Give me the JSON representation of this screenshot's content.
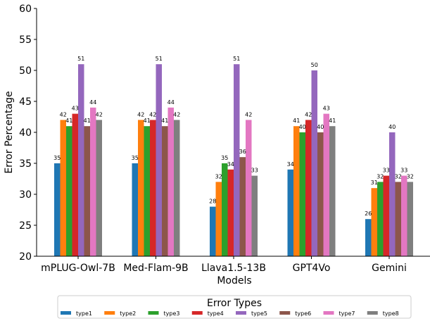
{
  "chart_data": {
    "type": "bar",
    "title": "",
    "xlabel": "Models",
    "ylabel": "Error Percentage",
    "ylim": [
      20,
      60
    ],
    "yticks": [
      "20",
      "25",
      "30",
      "35",
      "40",
      "45",
      "50",
      "55",
      "60"
    ],
    "grid": false,
    "legend_position": "bottom-center",
    "legend_title": "Error Types",
    "categories": [
      "mPLUG-Owl-7B",
      "Med-Flam-9B",
      "Llava1.5-13B",
      "GPT4Vo",
      "Gemini"
    ],
    "series": [
      {
        "name": "type1",
        "color": "#1f77b4",
        "values": [
          35,
          35,
          28,
          34,
          26
        ]
      },
      {
        "name": "type2",
        "color": "#ff7f0e",
        "values": [
          42,
          42,
          32,
          41,
          31
        ]
      },
      {
        "name": "type3",
        "color": "#2ca02c",
        "values": [
          41,
          41,
          35,
          40,
          32
        ]
      },
      {
        "name": "type4",
        "color": "#d62728",
        "values": [
          43,
          42,
          34,
          42,
          33
        ]
      },
      {
        "name": "type5",
        "color": "#9467bd",
        "values": [
          51,
          51,
          51,
          50,
          40
        ]
      },
      {
        "name": "type6",
        "color": "#8c564b",
        "values": [
          41,
          41,
          36,
          40,
          32
        ]
      },
      {
        "name": "type7",
        "color": "#e377c2",
        "values": [
          44,
          44,
          42,
          43,
          33
        ]
      },
      {
        "name": "type8",
        "color": "#7f7f7f",
        "values": [
          42,
          42,
          33,
          41,
          32
        ]
      }
    ]
  }
}
